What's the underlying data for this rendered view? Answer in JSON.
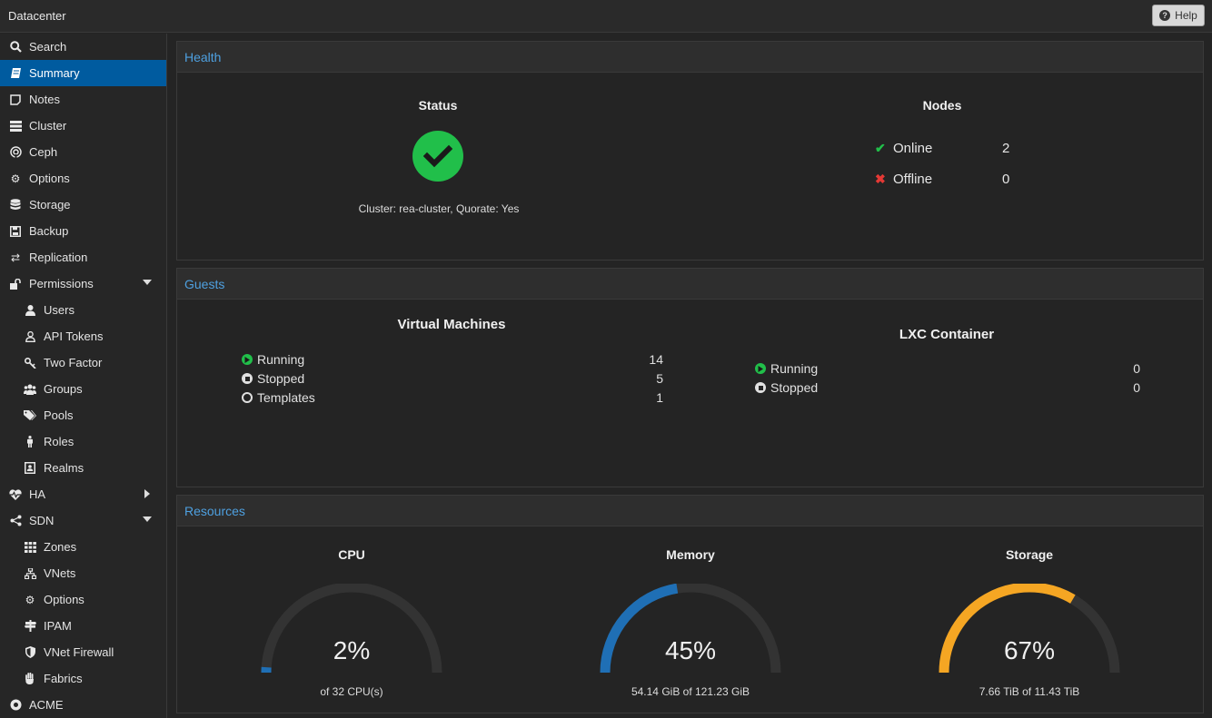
{
  "topbar": {
    "title": "Datacenter",
    "help_label": "Help"
  },
  "sidebar": {
    "items": [
      {
        "label": "Search"
      },
      {
        "label": "Summary"
      },
      {
        "label": "Notes"
      },
      {
        "label": "Cluster"
      },
      {
        "label": "Ceph"
      },
      {
        "label": "Options"
      },
      {
        "label": "Storage"
      },
      {
        "label": "Backup"
      },
      {
        "label": "Replication"
      },
      {
        "label": "Permissions"
      },
      {
        "label": "Users"
      },
      {
        "label": "API Tokens"
      },
      {
        "label": "Two Factor"
      },
      {
        "label": "Groups"
      },
      {
        "label": "Pools"
      },
      {
        "label": "Roles"
      },
      {
        "label": "Realms"
      },
      {
        "label": "HA"
      },
      {
        "label": "SDN"
      },
      {
        "label": "Zones"
      },
      {
        "label": "VNets"
      },
      {
        "label": "Options"
      },
      {
        "label": "IPAM"
      },
      {
        "label": "VNet Firewall"
      },
      {
        "label": "Fabrics"
      },
      {
        "label": "ACME"
      }
    ]
  },
  "health": {
    "header": "Health",
    "status_title": "Status",
    "cluster_text": "Cluster: rea-cluster, Quorate: Yes",
    "nodes_title": "Nodes",
    "online_label": "Online",
    "online_value": "2",
    "offline_label": "Offline",
    "offline_value": "0"
  },
  "guests": {
    "header": "Guests",
    "vm_title": "Virtual Machines",
    "vm_running_label": "Running",
    "vm_running_value": "14",
    "vm_stopped_label": "Stopped",
    "vm_stopped_value": "5",
    "vm_templates_label": "Templates",
    "vm_templates_value": "1",
    "lxc_title": "LXC Container",
    "lxc_running_label": "Running",
    "lxc_running_value": "0",
    "lxc_stopped_label": "Stopped",
    "lxc_stopped_value": "0"
  },
  "resources": {
    "header": "Resources",
    "cpu": {
      "title": "CPU",
      "percent_text": "2%",
      "fraction": 0.02,
      "sub": "of 32 CPU(s)",
      "color": "#1f6fb5"
    },
    "memory": {
      "title": "Memory",
      "percent_text": "45%",
      "fraction": 0.45,
      "sub": "54.14 GiB of 121.23 GiB",
      "color": "#1f6fb5"
    },
    "storage": {
      "title": "Storage",
      "percent_text": "67%",
      "fraction": 0.67,
      "sub": "7.66 TiB of 11.43 TiB",
      "color": "#f5a623"
    }
  },
  "colors": {
    "accent": "#005b9f",
    "ok": "#21bf4a",
    "error": "#e53935",
    "header_link": "#4ea0e0"
  }
}
